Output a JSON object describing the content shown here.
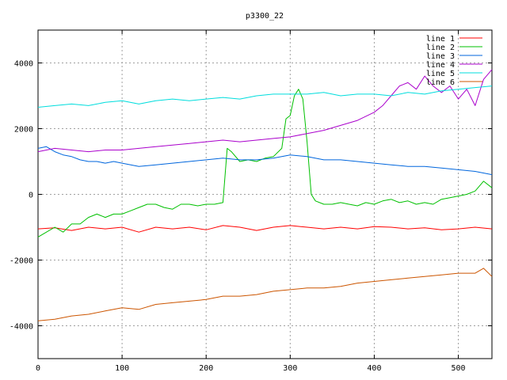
{
  "chart_data": {
    "type": "line",
    "title": "p3300_22",
    "xlabel": "",
    "ylabel": "",
    "xlim": [
      0,
      540
    ],
    "ylim": [
      -5000,
      5000
    ],
    "xticks": [
      0,
      100,
      200,
      300,
      400,
      500
    ],
    "yticks": [
      -4000,
      -2000,
      0,
      2000,
      4000
    ],
    "grid": true,
    "legend_position": "top-right",
    "series": [
      {
        "name": "line 1",
        "color": "#ff0000",
        "x": [
          0,
          20,
          40,
          60,
          80,
          100,
          120,
          140,
          160,
          180,
          200,
          220,
          240,
          260,
          280,
          300,
          320,
          340,
          360,
          380,
          400,
          420,
          440,
          460,
          480,
          500,
          520,
          540
        ],
        "y": [
          -1050,
          -1020,
          -1100,
          -1000,
          -1050,
          -1000,
          -1150,
          -1000,
          -1050,
          -1000,
          -1080,
          -950,
          -1000,
          -1100,
          -1000,
          -950,
          -1000,
          -1050,
          -1000,
          -1050,
          -980,
          -1000,
          -1050,
          -1020,
          -1080,
          -1050,
          -1000,
          -1050
        ]
      },
      {
        "name": "line 2",
        "color": "#00c000",
        "x": [
          0,
          10,
          20,
          30,
          40,
          50,
          60,
          70,
          80,
          90,
          100,
          110,
          120,
          130,
          140,
          150,
          160,
          170,
          180,
          190,
          200,
          210,
          220,
          225,
          230,
          240,
          250,
          260,
          270,
          280,
          290,
          295,
          300,
          305,
          310,
          315,
          320,
          325,
          330,
          340,
          350,
          360,
          370,
          380,
          390,
          400,
          410,
          420,
          430,
          440,
          450,
          460,
          470,
          480,
          490,
          500,
          510,
          520,
          530,
          540
        ],
        "y": [
          -1300,
          -1150,
          -1000,
          -1150,
          -900,
          -900,
          -700,
          -600,
          -700,
          -600,
          -600,
          -500,
          -400,
          -300,
          -300,
          -400,
          -450,
          -300,
          -300,
          -350,
          -300,
          -300,
          -250,
          1400,
          1300,
          1000,
          1050,
          1000,
          1100,
          1150,
          1400,
          2300,
          2400,
          3000,
          3200,
          2900,
          1600,
          0,
          -200,
          -300,
          -300,
          -250,
          -300,
          -350,
          -250,
          -300,
          -200,
          -150,
          -250,
          -200,
          -300,
          -250,
          -300,
          -150,
          -100,
          -50,
          0,
          100,
          400,
          200
        ]
      },
      {
        "name": "line 3",
        "color": "#0066dd",
        "x": [
          0,
          10,
          20,
          30,
          40,
          50,
          60,
          70,
          80,
          90,
          100,
          120,
          140,
          160,
          180,
          200,
          220,
          240,
          260,
          280,
          300,
          320,
          340,
          360,
          380,
          400,
          420,
          440,
          460,
          480,
          500,
          520,
          540
        ],
        "y": [
          1400,
          1450,
          1300,
          1200,
          1150,
          1050,
          1000,
          1000,
          950,
          1000,
          950,
          850,
          900,
          950,
          1000,
          1050,
          1100,
          1050,
          1050,
          1100,
          1200,
          1150,
          1050,
          1050,
          1000,
          950,
          900,
          850,
          850,
          800,
          750,
          700,
          600
        ]
      },
      {
        "name": "line 4",
        "color": "#aa00cc",
        "x": [
          0,
          20,
          40,
          60,
          80,
          100,
          120,
          140,
          160,
          180,
          200,
          220,
          240,
          260,
          280,
          300,
          320,
          340,
          360,
          380,
          400,
          410,
          420,
          430,
          440,
          450,
          460,
          470,
          480,
          490,
          500,
          510,
          520,
          530,
          540
        ],
        "y": [
          1300,
          1400,
          1350,
          1300,
          1350,
          1350,
          1400,
          1450,
          1500,
          1550,
          1600,
          1650,
          1600,
          1650,
          1700,
          1750,
          1850,
          1950,
          2100,
          2250,
          2500,
          2700,
          3000,
          3300,
          3400,
          3200,
          3600,
          3300,
          3100,
          3300,
          2900,
          3200,
          2700,
          3500,
          3800
        ]
      },
      {
        "name": "line 5",
        "color": "#00dddd",
        "x": [
          0,
          20,
          40,
          60,
          80,
          100,
          120,
          140,
          160,
          180,
          200,
          220,
          240,
          260,
          280,
          300,
          320,
          340,
          360,
          380,
          400,
          420,
          440,
          460,
          480,
          500,
          520,
          540
        ],
        "y": [
          2650,
          2700,
          2750,
          2700,
          2800,
          2850,
          2750,
          2850,
          2900,
          2850,
          2900,
          2950,
          2900,
          3000,
          3050,
          3050,
          3050,
          3100,
          3000,
          3050,
          3050,
          3000,
          3100,
          3050,
          3150,
          3200,
          3250,
          3300
        ]
      },
      {
        "name": "line 6",
        "color": "#cc5500",
        "x": [
          0,
          20,
          40,
          60,
          80,
          100,
          120,
          140,
          160,
          180,
          200,
          220,
          240,
          260,
          280,
          300,
          320,
          340,
          360,
          380,
          400,
          420,
          440,
          460,
          480,
          500,
          520,
          530,
          540
        ],
        "y": [
          -3850,
          -3800,
          -3700,
          -3650,
          -3550,
          -3450,
          -3500,
          -3350,
          -3300,
          -3250,
          -3200,
          -3100,
          -3100,
          -3050,
          -2950,
          -2900,
          -2850,
          -2850,
          -2800,
          -2700,
          -2650,
          -2600,
          -2550,
          -2500,
          -2450,
          -2400,
          -2400,
          -2250,
          -2500
        ]
      }
    ]
  }
}
